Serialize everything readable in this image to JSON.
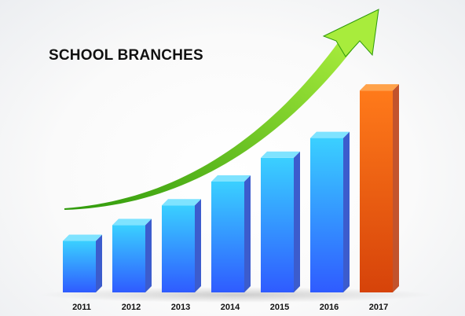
{
  "chart_data": {
    "type": "bar",
    "title": "SCHOOL BRANCHES",
    "xlabel": "",
    "ylabel": "",
    "categories": [
      "2011",
      "2012",
      "2013",
      "2014",
      "2015",
      "2016",
      "2017"
    ],
    "values": [
      1.3,
      1.7,
      2.2,
      2.8,
      3.4,
      3.9,
      5.1
    ],
    "ylim": [
      0,
      5.6
    ],
    "grid": false,
    "legend": "none",
    "highlight_category": "2017",
    "trend_arrow": true,
    "colors": {
      "bar_top": "#3ad0ff",
      "bar_bottom": "#2f5bff",
      "bar_side": "#1a3fc4",
      "bar_cap": "#7fe3ff",
      "highlight_top": "#ff7a1a",
      "highlight_bottom": "#d6430a",
      "highlight_side": "#b83608",
      "highlight_cap": "#ffa24a",
      "arrow_light": "#a8ec3c",
      "arrow_dark": "#2f9a0c"
    }
  }
}
